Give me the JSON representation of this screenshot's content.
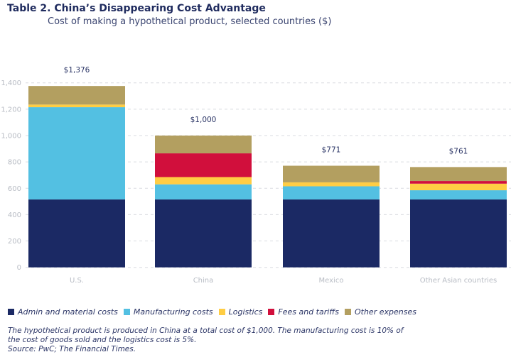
{
  "header": {
    "title": "Table 2. China’s Disappearing Cost Advantage",
    "subtitle": "Cost of making a hypothetical product, selected countries ($)"
  },
  "chart_data": {
    "type": "bar",
    "stacked": true,
    "title": "Table 2. China’s Disappearing Cost Advantage",
    "subtitle": "Cost of making a hypothetical product, selected countries ($)",
    "xlabel": "",
    "ylabel": "",
    "categories": [
      "U.S.",
      "China",
      "Mexico",
      "Other Asian countries"
    ],
    "ylim": [
      0,
      1400
    ],
    "yticks": [
      0,
      200,
      400,
      600,
      800,
      1000,
      1200,
      1400
    ],
    "ytick_labels": [
      "0",
      "200",
      "400",
      "600",
      "800",
      "1,000",
      "1,200",
      "1,400"
    ],
    "grid": true,
    "legend_position": "bottom",
    "totals": [
      "$1,376",
      "$1,000",
      "$771",
      "$761"
    ],
    "total_values": [
      1376,
      1000,
      771,
      761
    ],
    "series": [
      {
        "name": "Admin and material costs",
        "color": "#1b2964",
        "values": [
          515,
          515,
          515,
          515
        ]
      },
      {
        "name": "Manufacturing costs",
        "color": "#53c0e2",
        "values": [
          700,
          115,
          100,
          70
        ]
      },
      {
        "name": "Logistics",
        "color": "#ffcd44",
        "values": [
          20,
          55,
          30,
          50
        ]
      },
      {
        "name": "Fees and tariffs",
        "color": "#d10f3c",
        "values": [
          0,
          180,
          0,
          20
        ]
      },
      {
        "name": "Other expenses",
        "color": "#b39f60",
        "values": [
          141,
          135,
          126,
          106
        ]
      }
    ]
  },
  "footnote": {
    "line1": "The hypothetical product is produced in China at a total cost of $1,000. The manufacturing cost is 10% of",
    "line2": "the cost of goods sold and the logistics cost is 5%.",
    "source": "Source: PwC; The Financial Times."
  }
}
